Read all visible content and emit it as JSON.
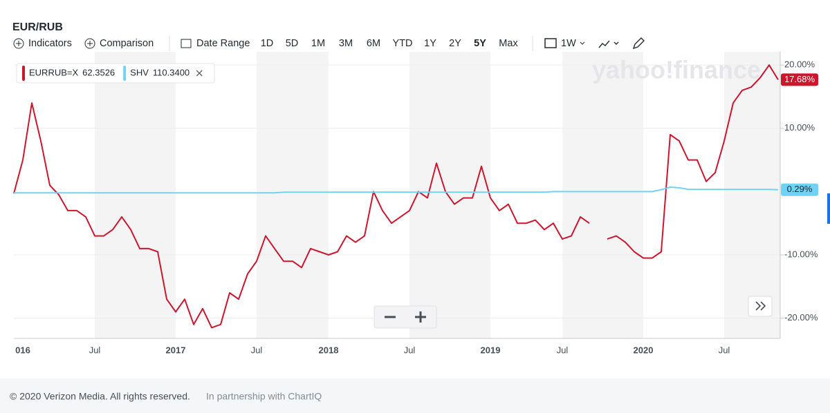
{
  "title": "EUR/RUB",
  "toolbar": {
    "indicators": "Indicators",
    "comparison": "Comparison",
    "date_range": "Date Range",
    "ranges": [
      "1D",
      "5D",
      "1M",
      "3M",
      "6M",
      "YTD",
      "1Y",
      "2Y",
      "5Y",
      "Max"
    ],
    "active_range": "5Y",
    "interval": "1W"
  },
  "watermark": "yahoo!finance",
  "footer": {
    "copyright": "© 2020 Verizon Media. All rights reserved.",
    "partner": "In partnership with ChartIQ"
  },
  "chart_data": {
    "type": "line",
    "categories": [
      null,
      "016",
      null,
      null,
      null,
      null,
      null,
      null,
      null,
      "Jul",
      null,
      null,
      null,
      null,
      null,
      null,
      null,
      null,
      "2017",
      null,
      null,
      null,
      null,
      null,
      null,
      null,
      null,
      "Jul",
      null,
      null,
      null,
      null,
      null,
      null,
      null,
      "2018",
      null,
      null,
      null,
      null,
      null,
      null,
      null,
      null,
      "Jul",
      null,
      null,
      null,
      null,
      null,
      null,
      null,
      null,
      "2019",
      null,
      null,
      null,
      null,
      null,
      null,
      null,
      "Jul",
      null,
      null,
      null,
      null,
      null,
      null,
      null,
      null,
      "2020",
      null,
      null,
      null,
      null,
      null,
      null,
      null,
      null,
      "Jul",
      null,
      null,
      null,
      null,
      null,
      null
    ],
    "series": [
      {
        "name": "EURRUB=X",
        "legend_value": "62.3526",
        "color": "#d0142c",
        "last_label": "17.68%",
        "values": [
          -0.3,
          5,
          14,
          8,
          1,
          -0.5,
          -3,
          -3,
          -4,
          -7,
          -7,
          -6,
          -4,
          -6,
          -9,
          -9,
          -9.5,
          -17,
          -19,
          -17,
          -21,
          -18.5,
          -21.5,
          -21,
          -16,
          -17,
          -13,
          -11,
          -7,
          -9,
          -11,
          -11,
          -12,
          -9,
          -9.5,
          -10,
          -9.5,
          -7,
          -8,
          -7,
          0,
          -3,
          -5,
          -4,
          -3,
          0,
          -1,
          4.5,
          0,
          -2,
          -1,
          -1,
          4,
          -1,
          -3,
          -2,
          -5,
          -5,
          -4.5,
          -6,
          -5,
          -7.5,
          -7,
          -4,
          -5,
          null,
          -7.5,
          -7,
          -8,
          -9.5,
          -10.5,
          -10.5,
          -9.5,
          9,
          8,
          5,
          5,
          1.6,
          3,
          8,
          14,
          16,
          16.5,
          18,
          20,
          17.68
        ]
      },
      {
        "name": "SHV",
        "legend_value": "110.3400",
        "color": "#6fd3f5",
        "last_label": "0.29%",
        "values": [
          -0.2,
          -0.2,
          -0.2,
          -0.2,
          -0.2,
          -0.2,
          -0.2,
          -0.2,
          -0.2,
          -0.2,
          -0.2,
          -0.2,
          -0.2,
          -0.2,
          -0.2,
          -0.2,
          -0.2,
          -0.2,
          -0.2,
          -0.2,
          -0.2,
          -0.2,
          -0.2,
          -0.2,
          -0.2,
          -0.2,
          -0.2,
          -0.2,
          -0.2,
          -0.2,
          -0.1,
          -0.1,
          -0.1,
          -0.1,
          -0.1,
          -0.1,
          -0.1,
          -0.1,
          -0.1,
          -0.1,
          -0.1,
          -0.1,
          -0.1,
          -0.1,
          -0.1,
          -0.1,
          -0.1,
          -0.1,
          -0.1,
          -0.1,
          -0.1,
          -0.1,
          -0.1,
          -0.1,
          -0.1,
          -0.1,
          -0.1,
          -0.1,
          -0.1,
          -0.1,
          0,
          0,
          0,
          0,
          0,
          0,
          0,
          0,
          0,
          0,
          0,
          0,
          0.3,
          0.7,
          0.6,
          0.35,
          0.35,
          0.35,
          0.35,
          0.35,
          0.35,
          0.35,
          0.35,
          0.35,
          0.35,
          0.29
        ]
      }
    ],
    "ylim": [
      -23.2,
      21
    ],
    "yticks": [
      {
        "value": -20,
        "label": "-20.00%"
      },
      {
        "value": -10,
        "label": "-10.00%"
      },
      {
        "value": 10,
        "label": "10.00%"
      },
      {
        "value": 20,
        "label": "20.00%"
      }
    ],
    "grid": true
  }
}
